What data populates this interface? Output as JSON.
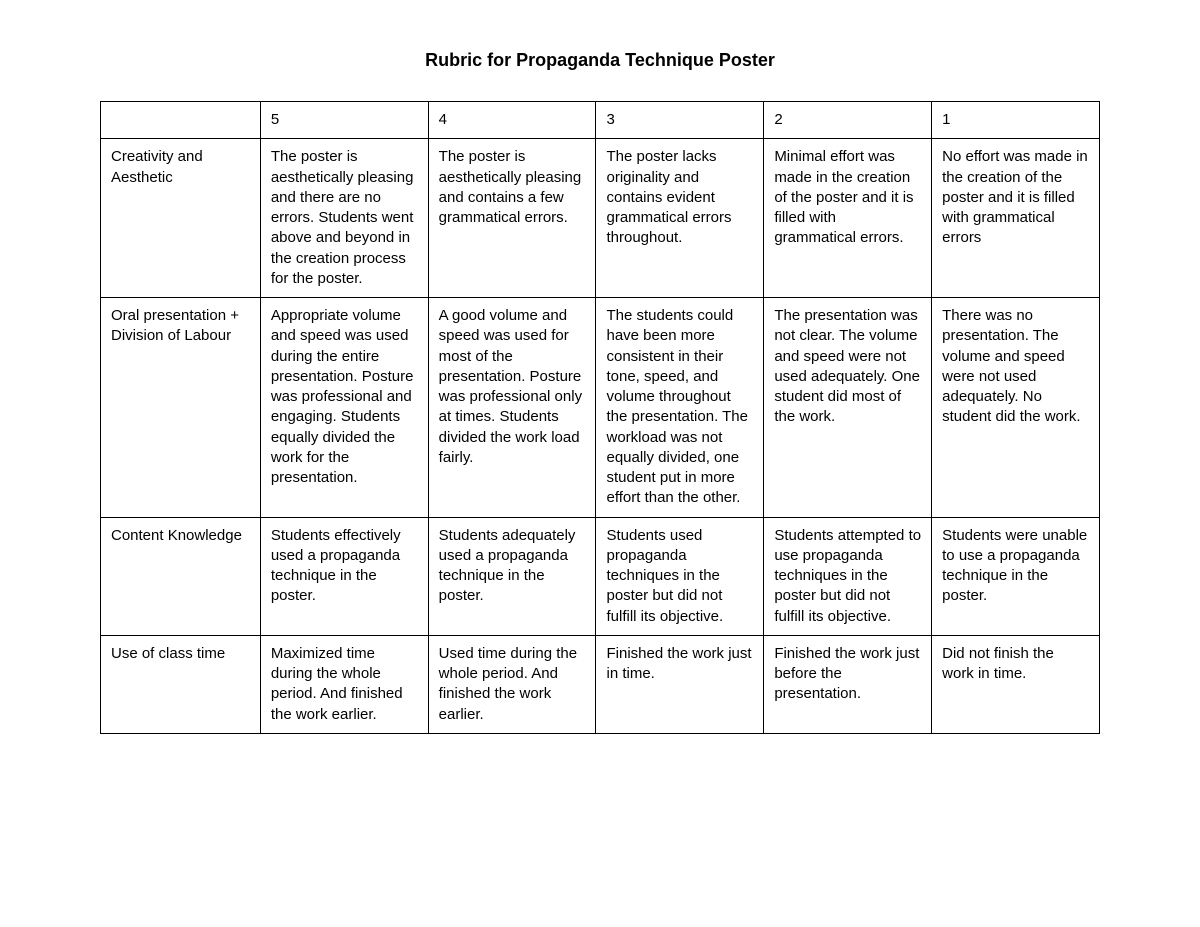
{
  "title": "Rubric for Propaganda Technique Poster",
  "columns": [
    "",
    "5",
    "4",
    "3",
    "2",
    "1"
  ],
  "rows": [
    {
      "criteria": "Creativity and Aesthetic",
      "cells": [
        "The poster is aesthetically pleasing and there are no errors. Students went above and beyond in the creation process for the poster.",
        "The poster is aesthetically pleasing and contains a few grammatical errors.",
        "The poster lacks originality and contains evident grammatical errors throughout.",
        "Minimal effort was made in the creation of the poster and it is filled with grammatical errors.",
        "No effort was made in the creation of the poster and it is filled with grammatical errors"
      ]
    },
    {
      "criteria": "Oral presentation + Division of Labour",
      "cells": [
        "Appropriate volume and speed was used during the entire presentation. Posture was professional and engaging. Students equally divided the work for the presentation.",
        "A good volume and speed was used for most of the presentation. Posture was professional only at times. Students divided the work load fairly.",
        "The students could have been more consistent in their tone, speed, and volume throughout the presentation. The workload was not equally divided, one student put in more effort than the other.",
        "The presentation was not clear. The volume and speed were not used adequately. One student did most of the work.",
        "There was no presentation. The volume and speed were not used adequately. No student did the work."
      ]
    },
    {
      "criteria": "Content Knowledge",
      "cells": [
        "Students effectively used a propaganda technique in the poster.",
        "Students adequately used a propaganda technique in the poster.",
        "Students used propaganda techniques in the poster but did not fulfill its objective.",
        "Students attempted to use propaganda techniques in the poster but did not fulfill its objective.",
        "Students were unable to use a propaganda technique in the poster."
      ]
    },
    {
      "criteria": "Use of class time",
      "cells": [
        "Maximized time during the whole period. And finished the work earlier.",
        "Used time during the whole period. And finished the work earlier.",
        "Finished the work just in time.",
        "Finished the work just before the presentation.",
        "Did not finish the work in time."
      ]
    }
  ]
}
